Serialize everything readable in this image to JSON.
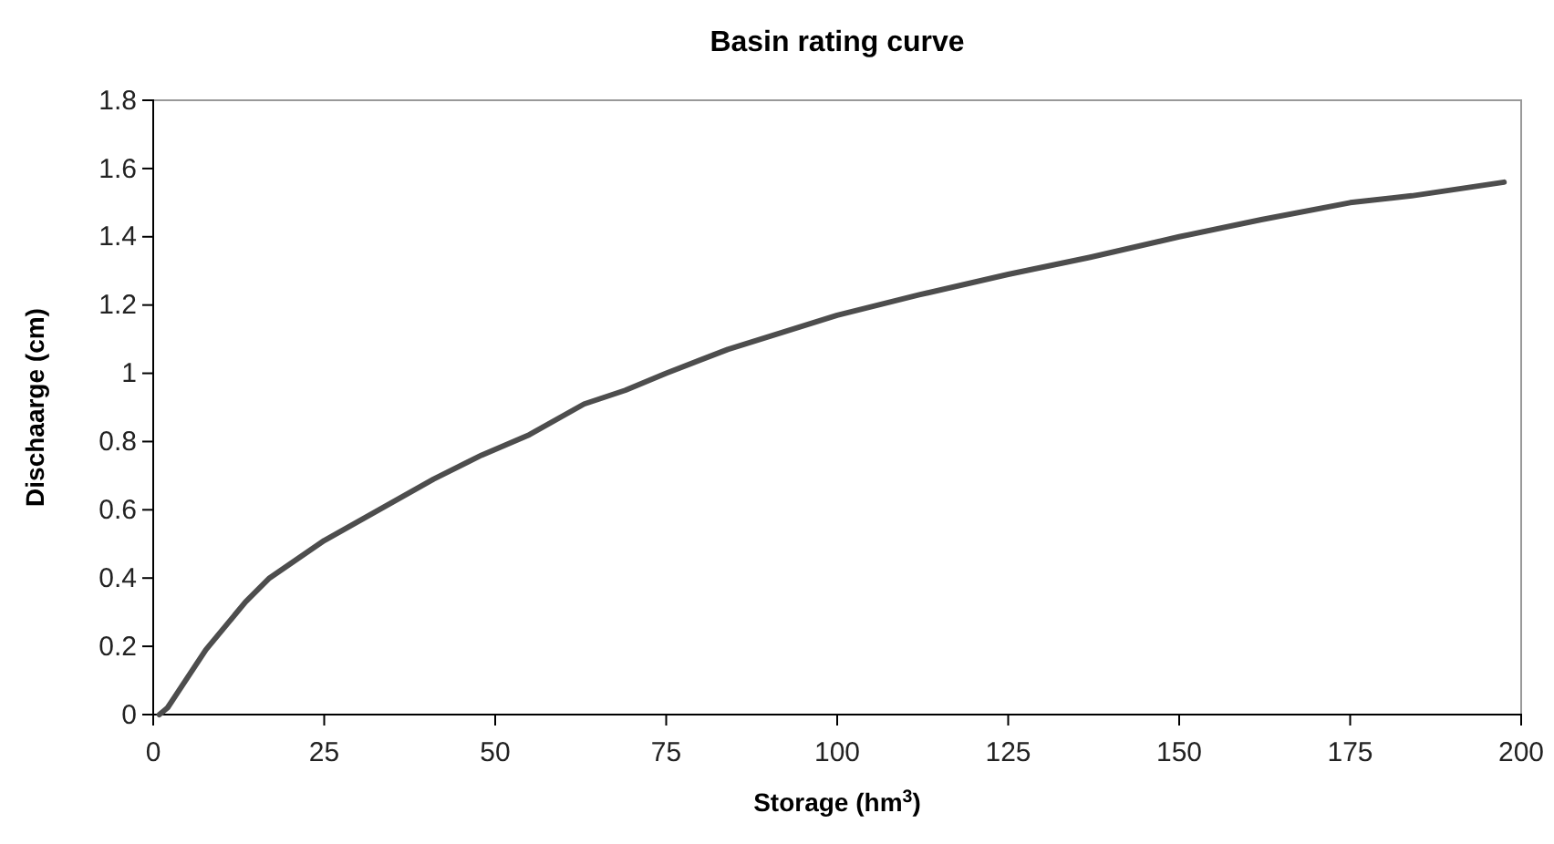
{
  "chart_data": {
    "type": "line",
    "title": "Basin rating curve",
    "xlabel": "Storage (hm$^{3}$)",
    "ylabel": "Dischaarge (cm)",
    "x": [
      0.9,
      2.1,
      7.7,
      13.5,
      17,
      25,
      33,
      41,
      48,
      55,
      63,
      69,
      75,
      84,
      92,
      100,
      112,
      125,
      137,
      150,
      162,
      175,
      184,
      197.5
    ],
    "series": [
      {
        "color": "#4d4d4d",
        "values": [
          0,
          0.02,
          0.19,
          0.33,
          0.4,
          0.51,
          0.6,
          0.69,
          0.76,
          0.82,
          0.91,
          0.95,
          1.0,
          1.07,
          1.12,
          1.17,
          1.23,
          1.29,
          1.34,
          1.4,
          1.45,
          1.5,
          1.52,
          1.56
        ]
      }
    ],
    "xlim": [
      0,
      200
    ],
    "xticks": [
      0,
      25,
      50,
      75,
      100,
      125,
      150,
      175,
      200
    ],
    "ylim": [
      0,
      1.8
    ],
    "yticks": [
      0,
      {
        "value": 0.2,
        "label": "0.2"
      },
      {
        "value": 0.4,
        "label": "0.4"
      },
      {
        "value": 0.6,
        "label": "0.6"
      },
      {
        "value": 0.8,
        "label": "0.8"
      },
      1,
      {
        "value": 1.2,
        "label": "1.2"
      },
      {
        "value": 1.4,
        "label": "1.4"
      },
      {
        "value": 1.6,
        "label": "1.6"
      },
      {
        "value": 1.8,
        "label": "1.8"
      }
    ],
    "grid": false,
    "marker": "none",
    "line_style": "solid"
  }
}
